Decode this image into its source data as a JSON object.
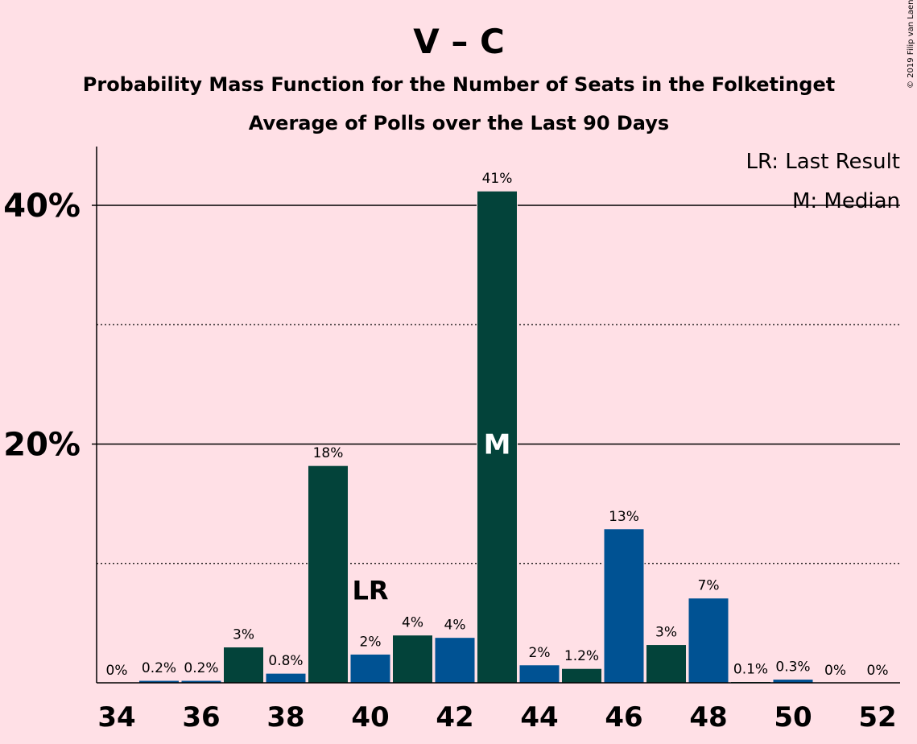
{
  "chart_data": {
    "type": "bar",
    "title": "V – C",
    "subtitle": "Probability Mass Function for the Number of Seats in the Folketinget",
    "subtitle2": "Average of Polls over the Last 90 Days",
    "copyright": "© 2019 Filip van Laenen",
    "legend": {
      "lr": "LR: Last Result",
      "median": "M: Median",
      "position": "top-right"
    },
    "x": [
      34,
      35,
      36,
      37,
      38,
      39,
      40,
      41,
      42,
      43,
      44,
      45,
      46,
      47,
      48,
      49,
      50,
      51,
      52
    ],
    "x_tick_labels": [
      "34",
      "36",
      "38",
      "40",
      "42",
      "44",
      "46",
      "48",
      "50",
      "52"
    ],
    "values": [
      0,
      0.2,
      0.2,
      3.0,
      0.8,
      18.2,
      2.4,
      4.0,
      3.8,
      41.2,
      1.5,
      1.2,
      12.9,
      3.2,
      7.1,
      0.1,
      0.3,
      0,
      0
    ],
    "value_labels": [
      "0%",
      "0.2%",
      "0.2%",
      "3%",
      "0.8%",
      "18%",
      "2%",
      "4%",
      "4%",
      "41%",
      "2%",
      "1.2%",
      "13%",
      "3%",
      "7%",
      "0.1%",
      "0.3%",
      "0%",
      "0%"
    ],
    "colors": [
      "#005293",
      "#005293",
      "#005293",
      "#03433A",
      "#005293",
      "#03433A",
      "#005293",
      "#03433A",
      "#005293",
      "#03433A",
      "#005293",
      "#03433A",
      "#005293",
      "#03433A",
      "#005293",
      "#03433A",
      "#005293",
      "#03433A",
      "#005293"
    ],
    "y_ticks": [
      {
        "value": 20,
        "label": "20%"
      },
      {
        "value": 40,
        "label": "40%"
      }
    ],
    "y_minor_ticks": [
      10,
      30
    ],
    "ylim": [
      0,
      45
    ],
    "last_result": {
      "x": 40,
      "label": "LR"
    },
    "median": {
      "x": 43,
      "label": "M"
    },
    "grid": true
  }
}
